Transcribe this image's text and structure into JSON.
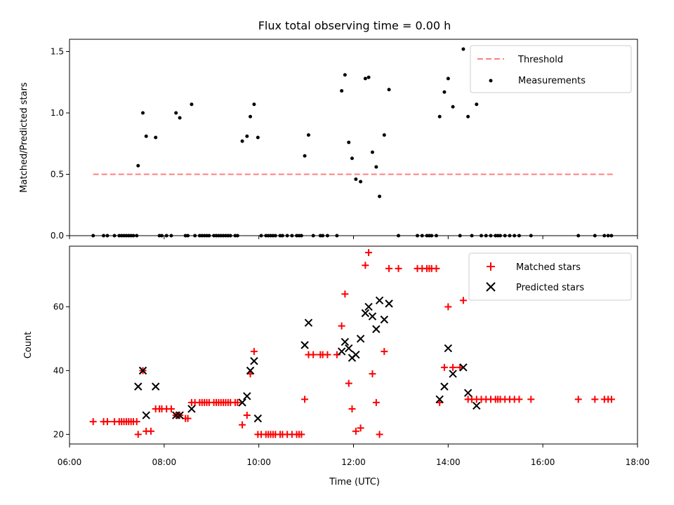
{
  "chart_data": [
    {
      "type": "scatter",
      "title": "Flux total observing time = 0.00 h",
      "ylabel": "Matched/Predicted stars",
      "xlabel": "",
      "xlim": [
        6.0,
        18.0
      ],
      "ylim": [
        0.0,
        1.6
      ],
      "y_ticks": [
        "0.0",
        "0.5",
        "1.0",
        "1.5"
      ],
      "x_ticks_hours": [
        6,
        8,
        10,
        12,
        14,
        16,
        18
      ],
      "grid": false,
      "legend_position": "top-right",
      "threshold": {
        "name": "Threshold",
        "y": 0.5,
        "x": [
          6.5,
          17.5
        ],
        "color": "#ff7f7f",
        "style": "dashed"
      },
      "series": [
        {
          "name": "Measurements",
          "color": "#000000",
          "marker": "dot",
          "points": [
            [
              6.5,
              0
            ],
            [
              6.72,
              0
            ],
            [
              6.8,
              0
            ],
            [
              6.95,
              0
            ],
            [
              7.05,
              0
            ],
            [
              7.1,
              0
            ],
            [
              7.15,
              0
            ],
            [
              7.2,
              0
            ],
            [
              7.25,
              0
            ],
            [
              7.3,
              0
            ],
            [
              7.35,
              0
            ],
            [
              7.42,
              0
            ],
            [
              7.45,
              0.57
            ],
            [
              7.55,
              1.0
            ],
            [
              7.62,
              0.81
            ],
            [
              7.82,
              0.8
            ],
            [
              7.9,
              0
            ],
            [
              7.95,
              0
            ],
            [
              8.05,
              0
            ],
            [
              8.15,
              0
            ],
            [
              8.25,
              1.0
            ],
            [
              8.33,
              0.96
            ],
            [
              8.45,
              0
            ],
            [
              8.5,
              0
            ],
            [
              8.58,
              1.07
            ],
            [
              8.65,
              0
            ],
            [
              8.75,
              0
            ],
            [
              8.8,
              0
            ],
            [
              8.85,
              0
            ],
            [
              8.9,
              0
            ],
            [
              8.95,
              0
            ],
            [
              9.05,
              0
            ],
            [
              9.1,
              0
            ],
            [
              9.15,
              0
            ],
            [
              9.2,
              0
            ],
            [
              9.25,
              0
            ],
            [
              9.3,
              0
            ],
            [
              9.35,
              0
            ],
            [
              9.4,
              0
            ],
            [
              9.5,
              0
            ],
            [
              9.55,
              0
            ],
            [
              9.65,
              0.77
            ],
            [
              9.75,
              0.81
            ],
            [
              9.82,
              0.97
            ],
            [
              9.9,
              1.07
            ],
            [
              9.98,
              0.8
            ],
            [
              10.05,
              0
            ],
            [
              10.15,
              0
            ],
            [
              10.2,
              0
            ],
            [
              10.25,
              0
            ],
            [
              10.3,
              0
            ],
            [
              10.35,
              0
            ],
            [
              10.45,
              0
            ],
            [
              10.5,
              0
            ],
            [
              10.6,
              0
            ],
            [
              10.7,
              0
            ],
            [
              10.8,
              0
            ],
            [
              10.85,
              0
            ],
            [
              10.9,
              0
            ],
            [
              10.97,
              0.65
            ],
            [
              11.05,
              0.82
            ],
            [
              11.15,
              0
            ],
            [
              11.3,
              0
            ],
            [
              11.35,
              0
            ],
            [
              11.45,
              0
            ],
            [
              11.65,
              0
            ],
            [
              11.75,
              1.18
            ],
            [
              11.82,
              1.31
            ],
            [
              11.9,
              0.76
            ],
            [
              11.97,
              0.63
            ],
            [
              12.05,
              0.46
            ],
            [
              12.15,
              0.44
            ],
            [
              12.25,
              1.28
            ],
            [
              12.32,
              1.29
            ],
            [
              12.4,
              0.68
            ],
            [
              12.48,
              0.56
            ],
            [
              12.55,
              0.32
            ],
            [
              12.65,
              0.82
            ],
            [
              12.75,
              1.19
            ],
            [
              12.95,
              0
            ],
            [
              13.35,
              0
            ],
            [
              13.45,
              0
            ],
            [
              13.55,
              0
            ],
            [
              13.6,
              0
            ],
            [
              13.65,
              0
            ],
            [
              13.75,
              0
            ],
            [
              13.82,
              0.97
            ],
            [
              13.92,
              1.17
            ],
            [
              14.0,
              1.28
            ],
            [
              14.1,
              1.05
            ],
            [
              14.25,
              0
            ],
            [
              14.32,
              1.52
            ],
            [
              14.42,
              0.97
            ],
            [
              14.5,
              0
            ],
            [
              14.6,
              1.07
            ],
            [
              14.7,
              0
            ],
            [
              14.8,
              0
            ],
            [
              14.9,
              0
            ],
            [
              15.0,
              0
            ],
            [
              15.05,
              0
            ],
            [
              15.1,
              0
            ],
            [
              15.2,
              0
            ],
            [
              15.3,
              0
            ],
            [
              15.4,
              0
            ],
            [
              15.5,
              0
            ],
            [
              15.75,
              0
            ],
            [
              16.75,
              0
            ],
            [
              17.1,
              0
            ],
            [
              17.3,
              0
            ],
            [
              17.38,
              0
            ],
            [
              17.45,
              0
            ]
          ]
        }
      ]
    },
    {
      "type": "scatter",
      "title": "",
      "ylabel": "Count",
      "xlabel": "Time (UTC)",
      "xlim": [
        6.0,
        18.0
      ],
      "ylim": [
        17,
        79
      ],
      "y_ticks": [
        "20",
        "40",
        "60"
      ],
      "x_ticks_hours": [
        6,
        8,
        10,
        12,
        14,
        16,
        18
      ],
      "x_tick_labels": [
        "06:00",
        "08:00",
        "10:00",
        "12:00",
        "14:00",
        "16:00",
        "18:00"
      ],
      "grid": false,
      "legend_position": "top-right",
      "series": [
        {
          "name": "Matched stars",
          "color": "#ff0000",
          "marker": "plus",
          "points": [
            [
              6.5,
              24
            ],
            [
              6.72,
              24
            ],
            [
              6.8,
              24
            ],
            [
              6.95,
              24
            ],
            [
              7.05,
              24
            ],
            [
              7.1,
              24
            ],
            [
              7.15,
              24
            ],
            [
              7.2,
              24
            ],
            [
              7.25,
              24
            ],
            [
              7.3,
              24
            ],
            [
              7.35,
              24
            ],
            [
              7.42,
              24
            ],
            [
              7.45,
              20
            ],
            [
              7.55,
              40
            ],
            [
              7.62,
              21
            ],
            [
              7.72,
              21
            ],
            [
              7.82,
              28
            ],
            [
              7.9,
              28
            ],
            [
              7.95,
              28
            ],
            [
              8.05,
              28
            ],
            [
              8.15,
              28
            ],
            [
              8.25,
              26
            ],
            [
              8.33,
              26
            ],
            [
              8.45,
              25
            ],
            [
              8.5,
              25
            ],
            [
              8.58,
              30
            ],
            [
              8.65,
              30
            ],
            [
              8.75,
              30
            ],
            [
              8.8,
              30
            ],
            [
              8.85,
              30
            ],
            [
              8.9,
              30
            ],
            [
              8.95,
              30
            ],
            [
              9.05,
              30
            ],
            [
              9.1,
              30
            ],
            [
              9.15,
              30
            ],
            [
              9.2,
              30
            ],
            [
              9.25,
              30
            ],
            [
              9.3,
              30
            ],
            [
              9.35,
              30
            ],
            [
              9.4,
              30
            ],
            [
              9.5,
              30
            ],
            [
              9.55,
              30
            ],
            [
              9.65,
              23
            ],
            [
              9.75,
              26
            ],
            [
              9.82,
              39
            ],
            [
              9.9,
              46
            ],
            [
              9.98,
              20
            ],
            [
              10.05,
              20
            ],
            [
              10.15,
              20
            ],
            [
              10.2,
              20
            ],
            [
              10.25,
              20
            ],
            [
              10.3,
              20
            ],
            [
              10.35,
              20
            ],
            [
              10.45,
              20
            ],
            [
              10.5,
              20
            ],
            [
              10.6,
              20
            ],
            [
              10.7,
              20
            ],
            [
              10.8,
              20
            ],
            [
              10.85,
              20
            ],
            [
              10.9,
              20
            ],
            [
              10.97,
              31
            ],
            [
              11.05,
              45
            ],
            [
              11.15,
              45
            ],
            [
              11.3,
              45
            ],
            [
              11.35,
              45
            ],
            [
              11.45,
              45
            ],
            [
              11.65,
              45
            ],
            [
              11.75,
              54
            ],
            [
              11.82,
              64
            ],
            [
              11.9,
              36
            ],
            [
              11.97,
              28
            ],
            [
              12.05,
              21
            ],
            [
              12.15,
              22
            ],
            [
              12.25,
              73
            ],
            [
              12.32,
              77
            ],
            [
              12.4,
              39
            ],
            [
              12.48,
              30
            ],
            [
              12.55,
              20
            ],
            [
              12.65,
              46
            ],
            [
              12.75,
              72
            ],
            [
              12.95,
              72
            ],
            [
              13.35,
              72
            ],
            [
              13.45,
              72
            ],
            [
              13.55,
              72
            ],
            [
              13.6,
              72
            ],
            [
              13.65,
              72
            ],
            [
              13.75,
              72
            ],
            [
              13.82,
              30
            ],
            [
              13.92,
              41
            ],
            [
              14.0,
              60
            ],
            [
              14.1,
              41
            ],
            [
              14.25,
              41
            ],
            [
              14.32,
              62
            ],
            [
              14.42,
              31
            ],
            [
              14.5,
              31
            ],
            [
              14.6,
              31
            ],
            [
              14.7,
              31
            ],
            [
              14.8,
              31
            ],
            [
              14.9,
              31
            ],
            [
              15.0,
              31
            ],
            [
              15.05,
              31
            ],
            [
              15.1,
              31
            ],
            [
              15.2,
              31
            ],
            [
              15.3,
              31
            ],
            [
              15.4,
              31
            ],
            [
              15.5,
              31
            ],
            [
              15.75,
              31
            ],
            [
              16.75,
              31
            ],
            [
              17.1,
              31
            ],
            [
              17.3,
              31
            ],
            [
              17.38,
              31
            ],
            [
              17.45,
              31
            ]
          ]
        },
        {
          "name": "Predicted stars",
          "color": "#000000",
          "marker": "x",
          "points": [
            [
              7.45,
              35
            ],
            [
              7.55,
              40
            ],
            [
              7.62,
              26
            ],
            [
              7.82,
              35
            ],
            [
              8.25,
              26
            ],
            [
              8.33,
              26
            ],
            [
              8.58,
              28
            ],
            [
              9.65,
              30
            ],
            [
              9.75,
              32
            ],
            [
              9.82,
              40
            ],
            [
              9.9,
              43
            ],
            [
              9.98,
              25
            ],
            [
              10.97,
              48
            ],
            [
              11.05,
              55
            ],
            [
              11.75,
              46
            ],
            [
              11.82,
              49
            ],
            [
              11.9,
              47
            ],
            [
              11.97,
              44
            ],
            [
              12.05,
              45
            ],
            [
              12.15,
              50
            ],
            [
              12.25,
              58
            ],
            [
              12.32,
              60
            ],
            [
              12.4,
              57
            ],
            [
              12.48,
              53
            ],
            [
              12.55,
              62
            ],
            [
              12.65,
              56
            ],
            [
              12.75,
              61
            ],
            [
              13.82,
              31
            ],
            [
              13.92,
              35
            ],
            [
              14.0,
              47
            ],
            [
              14.1,
              39
            ],
            [
              14.32,
              41
            ],
            [
              14.42,
              33
            ],
            [
              14.6,
              29
            ]
          ]
        }
      ]
    }
  ]
}
